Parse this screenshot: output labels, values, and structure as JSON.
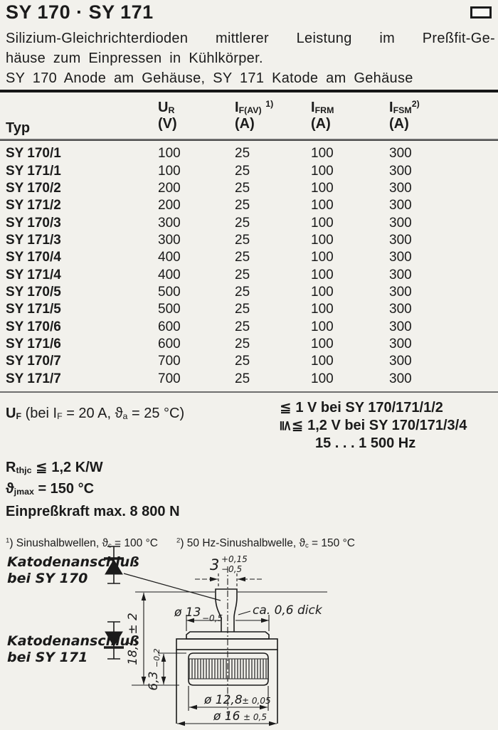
{
  "colors": {
    "ink": "#1b1b1b",
    "paper": "#f2f1ec"
  },
  "header": {
    "title": "SY 170 · SY 171",
    "corner_icon": "corner-marker"
  },
  "description": {
    "line1": "Silizium-Gleichrichterdioden mittlerer Leistung im Preßfit-Ge-",
    "line2": "häuse zum Einpressen in Kühlkörper.",
    "line3": "SY 170 Anode am Gehäuse, SY 171 Katode am Gehäuse"
  },
  "table": {
    "typ_header": "Typ",
    "columns": [
      {
        "symbol": [
          {
            "t": "U"
          },
          {
            "t": "R",
            "v": "sub"
          }
        ],
        "unit": "(V)"
      },
      {
        "symbol": [
          {
            "t": "I"
          },
          {
            "t": "F(AV)",
            "v": "sub"
          },
          {
            "t": " "
          },
          {
            "t": "1)",
            "v": "sup"
          }
        ],
        "unit": "(A)"
      },
      {
        "symbol": [
          {
            "t": "I"
          },
          {
            "t": "FRM",
            "v": "sub"
          }
        ],
        "unit": "(A)"
      },
      {
        "symbol": [
          {
            "t": "I"
          },
          {
            "t": "FSM",
            "v": "sub"
          },
          {
            "t": "2)",
            "v": "sup"
          }
        ],
        "unit": "(A)"
      }
    ],
    "rows": [
      {
        "typ": "SY 170/1",
        "ur": "100",
        "ifav": "25",
        "ifrm": "100",
        "ifsm": "300"
      },
      {
        "typ": "SY 171/1",
        "ur": "100",
        "ifav": "25",
        "ifrm": "100",
        "ifsm": "300"
      },
      {
        "typ": "SY 170/2",
        "ur": "200",
        "ifav": "25",
        "ifrm": "100",
        "ifsm": "300"
      },
      {
        "typ": "SY 171/2",
        "ur": "200",
        "ifav": "25",
        "ifrm": "100",
        "ifsm": "300"
      },
      {
        "typ": "SY 170/3",
        "ur": "300",
        "ifav": "25",
        "ifrm": "100",
        "ifsm": "300"
      },
      {
        "typ": "SY 171/3",
        "ur": "300",
        "ifav": "25",
        "ifrm": "100",
        "ifsm": "300"
      },
      {
        "typ": "SY 170/4",
        "ur": "400",
        "ifav": "25",
        "ifrm": "100",
        "ifsm": "300"
      },
      {
        "typ": "SY 171/4",
        "ur": "400",
        "ifav": "25",
        "ifrm": "100",
        "ifsm": "300"
      },
      {
        "typ": "SY 170/5",
        "ur": "500",
        "ifav": "25",
        "ifrm": "100",
        "ifsm": "300"
      },
      {
        "typ": "SY 171/5",
        "ur": "500",
        "ifav": "25",
        "ifrm": "100",
        "ifsm": "300"
      },
      {
        "typ": "SY 170/6",
        "ur": "600",
        "ifav": "25",
        "ifrm": "100",
        "ifsm": "300"
      },
      {
        "typ": "SY 171/6",
        "ur": "600",
        "ifav": "25",
        "ifrm": "100",
        "ifsm": "300"
      },
      {
        "typ": "SY 170/7",
        "ur": "700",
        "ifav": "25",
        "ifrm": "100",
        "ifsm": "300"
      },
      {
        "typ": "SY 171/7",
        "ur": "700",
        "ifav": "25",
        "ifrm": "100",
        "ifsm": "300"
      }
    ]
  },
  "uf": {
    "label": [
      {
        "t": "U",
        "b": true
      },
      {
        "t": "F",
        "v": "sub",
        "b": true
      },
      {
        "t": "  (bei "
      },
      {
        "t": "I"
      },
      {
        "t": "F",
        "v": "sub"
      },
      {
        "t": " = 20 A, "
      },
      {
        "t": "ϑ"
      },
      {
        "t": "a",
        "v": "sub"
      },
      {
        "t": " = 25 °C)"
      }
    ],
    "line1": [
      {
        "t": "≦",
        "b": true
      },
      {
        "t": " 1 V bei SY 170/171/1/2",
        "b": true
      }
    ],
    "line2": [
      {
        "t": "≦",
        "rot": true,
        "b": true
      },
      {
        "t": "≦",
        "b": true
      },
      {
        "t": " 1,2 V bei SY 170/171/3/4",
        "b": true
      }
    ],
    "line3": [
      {
        "t": "15 . . . 1 500 Hz",
        "b": true
      }
    ]
  },
  "params": {
    "rth": [
      {
        "t": "R",
        "b": true
      },
      {
        "t": "thjc",
        "v": "sub",
        "b": true
      },
      {
        "t": "  ≦  1,2 K/W",
        "b": true
      }
    ],
    "tjmax": [
      {
        "t": "ϑ",
        "b": true
      },
      {
        "t": "jmax",
        "v": "sub",
        "b": true
      },
      {
        "t": "  =  150 °C",
        "b": true
      }
    ],
    "force": [
      {
        "t": "Einpreßkraft max. 8 800 N",
        "b": true
      }
    ],
    "footnote1": [
      {
        "t": "1",
        "v": "sup"
      },
      {
        "t": ") Sinushalbwellen, "
      },
      {
        "t": "ϑ"
      },
      {
        "t": "c",
        "v": "sub"
      },
      {
        "t": " = 100 °C"
      }
    ],
    "footnote2": [
      {
        "t": "2",
        "v": "sup"
      },
      {
        "t": ") 50 Hz-Sinushalbwelle, "
      },
      {
        "t": "ϑ"
      },
      {
        "t": "c",
        "v": "sub"
      },
      {
        "t": " = 150 °C"
      }
    ]
  },
  "drawing": {
    "cathode_170_l1": "Katodenanschluß",
    "cathode_170_l2": "bei SY 170",
    "cathode_171_l1": "Katodenanschluß",
    "cathode_171_l2": "bei SY 171",
    "pin_width": "3",
    "pin_tol_plus": "+0,15",
    "pin_tol_minus": "−0,5",
    "tab_thickness": "ca. 0,6 dick",
    "d13": "ø 13",
    "d13_tol": "−0,5",
    "height": "18,5 ± 2",
    "knurl_h": "6,3 ",
    "knurl_h_tol": "−0,2",
    "d128": "ø 12,8",
    "d128_tol": "± 0,05",
    "d16": "ø 16",
    "d16_tol": "± 0,5"
  }
}
